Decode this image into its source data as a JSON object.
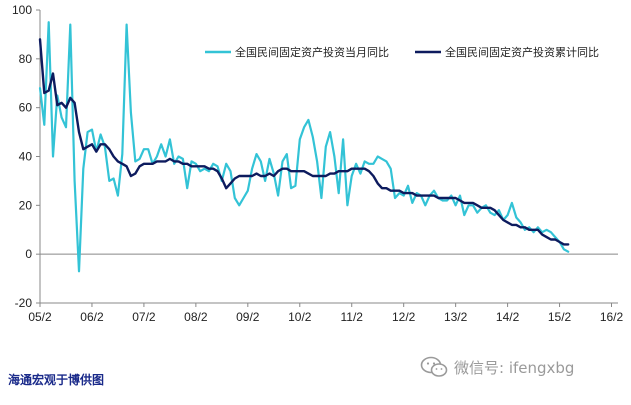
{
  "chart_data": {
    "type": "line",
    "title": "",
    "xlabel": "",
    "ylabel": "",
    "ylim": [
      -20,
      100
    ],
    "yticks": [
      -20,
      0,
      20,
      40,
      60,
      80,
      100
    ],
    "x_tick_labels": [
      "05/2",
      "06/2",
      "07/2",
      "08/2",
      "09/2",
      "10/2",
      "11/2",
      "12/2",
      "13/2",
      "14/2",
      "15/2",
      "16/2"
    ],
    "x_start": "2005-02",
    "grid": false,
    "legend_position": "top-right",
    "series": [
      {
        "name": "全国民间固定资产投资当月同比",
        "color": "#33c3d6",
        "values": [
          68,
          53,
          95,
          40,
          65,
          56,
          52,
          94,
          30,
          -7,
          35,
          50,
          51,
          42,
          49,
          44,
          30,
          31,
          24,
          41,
          94,
          58,
          38,
          39,
          43,
          43,
          37,
          40,
          45,
          40,
          47,
          37,
          40,
          39,
          27,
          38,
          37,
          34,
          35,
          34,
          37,
          36,
          30,
          37,
          34,
          23,
          20,
          23,
          26,
          35,
          41,
          38,
          30,
          39,
          33,
          24,
          38,
          41,
          27,
          28,
          47,
          52,
          55,
          48,
          38,
          23,
          44,
          50,
          40,
          25,
          47,
          20,
          32,
          37,
          33,
          38,
          37,
          37,
          40,
          39,
          38,
          35,
          23,
          25,
          24,
          28,
          21,
          25,
          24,
          20,
          24,
          26,
          23,
          22,
          22,
          24,
          20,
          24,
          16,
          20,
          20,
          17,
          19,
          20,
          17,
          16,
          18,
          14,
          16,
          21,
          15,
          13,
          10,
          11,
          9,
          11,
          9,
          10,
          9,
          7,
          5,
          2,
          1
        ],
        "stroke_width": 2.2
      },
      {
        "name": "全国民间固定资产投资累计同比",
        "color": "#0d1b5e",
        "values": [
          88,
          66,
          67,
          74,
          61,
          62,
          60,
          64,
          62,
          50,
          43,
          44,
          45,
          42,
          45,
          45,
          43,
          40,
          38,
          37,
          36,
          32,
          33,
          36,
          37,
          37,
          37,
          38,
          38,
          38,
          39,
          38,
          38,
          37,
          37,
          36,
          36,
          36,
          36,
          35,
          35,
          34,
          31,
          27,
          29,
          31,
          32,
          32,
          32,
          32,
          33,
          32,
          32,
          33,
          32,
          34,
          35,
          35,
          34,
          34,
          34,
          34,
          33,
          32,
          32,
          32,
          32,
          33,
          33,
          34,
          34,
          34,
          35,
          35,
          35,
          35,
          34,
          32,
          29,
          27,
          27,
          26,
          26,
          26,
          25,
          25,
          25,
          24,
          24,
          24,
          24,
          24,
          23,
          23,
          23,
          23,
          23,
          22,
          21,
          21,
          21,
          20,
          19,
          19,
          19,
          18,
          16,
          14,
          13,
          12,
          12,
          11,
          11,
          10,
          10,
          10,
          8,
          7,
          6,
          6,
          5,
          4,
          4
        ],
        "stroke_width": 2.4
      }
    ]
  },
  "source_label": "海通宏观于博供图",
  "watermark": {
    "text": "微信号: ifengxbg",
    "icon": "wechat-icon"
  }
}
